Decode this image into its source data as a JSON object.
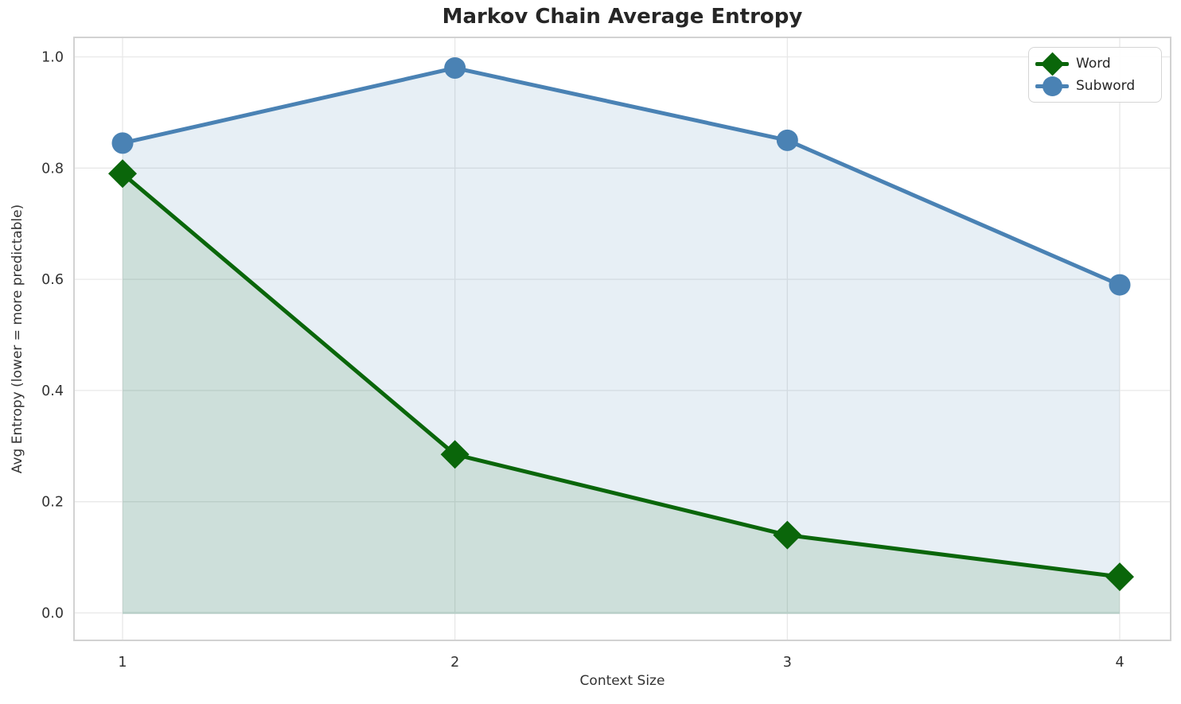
{
  "chart_data": {
    "type": "line",
    "title": "Markov Chain Average Entropy",
    "xlabel": "Context Size",
    "ylabel": "Avg Entropy (lower = more predictable)",
    "categories": [
      1,
      2,
      3,
      4
    ],
    "xtick_labels": [
      "1",
      "2",
      "3",
      "4"
    ],
    "yticks": [
      0.0,
      0.2,
      0.4,
      0.6,
      0.8,
      1.0
    ],
    "ytick_labels": [
      "0.0",
      "0.2",
      "0.4",
      "0.6",
      "0.8",
      "1.0"
    ],
    "ylim": [
      -0.05,
      1.035
    ],
    "grid": true,
    "legend_position": "upper right",
    "series": [
      {
        "name": "Word",
        "marker": "diamond",
        "color": "#0a660a",
        "fill_color": "rgba(0,100,0,0.11)",
        "values": [
          0.79,
          0.285,
          0.14,
          0.065
        ]
      },
      {
        "name": "Subword",
        "marker": "circle",
        "color": "#4a82b4",
        "fill_color": "rgba(70,130,180,0.13)",
        "values": [
          0.845,
          0.98,
          0.85,
          0.59
        ]
      }
    ],
    "baseline_value": 0.0,
    "baseline_edge_color": "#b8cfc8",
    "grid_color": "#e8e8e8",
    "spine_color": "#d2d2d2",
    "tick_text_color": "#333333"
  }
}
